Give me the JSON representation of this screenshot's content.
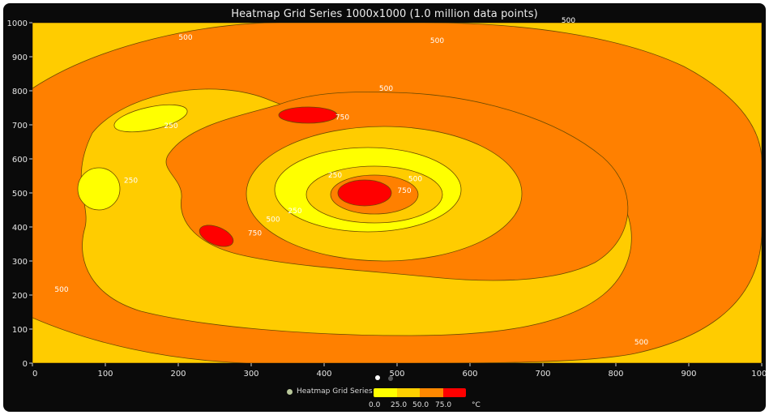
{
  "chart_data": {
    "type": "heatmap",
    "title": "Heatmap Grid Series 1000x1000 (1.0 million data points)",
    "xlim": [
      0,
      1000
    ],
    "ylim": [
      0,
      1000
    ],
    "x_ticks": [
      "0",
      "100",
      "200",
      "300",
      "400",
      "500",
      "600",
      "700",
      "800",
      "900",
      "1000"
    ],
    "y_ticks": [
      "0",
      "100",
      "200",
      "300",
      "400",
      "500",
      "600",
      "700",
      "800",
      "900",
      "1000"
    ],
    "contour_levels": [
      250,
      500,
      750
    ],
    "contour_labels": [
      {
        "text": "500",
        "x": 210,
        "y": 950
      },
      {
        "text": "500",
        "x": 555,
        "y": 940
      },
      {
        "text": "500",
        "x": 735,
        "y": 1000
      },
      {
        "text": "500",
        "x": 485,
        "y": 800
      },
      {
        "text": "750",
        "x": 425,
        "y": 715
      },
      {
        "text": "250",
        "x": 190,
        "y": 690
      },
      {
        "text": "250",
        "x": 135,
        "y": 530
      },
      {
        "text": "250",
        "x": 415,
        "y": 545
      },
      {
        "text": "500",
        "x": 525,
        "y": 535
      },
      {
        "text": "750",
        "x": 510,
        "y": 500
      },
      {
        "text": "250",
        "x": 360,
        "y": 440
      },
      {
        "text": "500",
        "x": 330,
        "y": 415
      },
      {
        "text": "750",
        "x": 305,
        "y": 375
      },
      {
        "text": "500",
        "x": 40,
        "y": 210
      },
      {
        "text": "500",
        "x": 835,
        "y": 55
      }
    ],
    "legend": {
      "series_name": "Heatmap Grid Series",
      "unit": "°C",
      "ticks": [
        "0.0",
        "25.0",
        "50.0",
        "75.0"
      ],
      "colors": [
        "#ffff00",
        "#ffd000",
        "#ff8800",
        "#ff0000"
      ]
    },
    "colors": {
      "low": "#ffff00",
      "mid_low": "#ffcc00",
      "mid_high": "#ff8000",
      "high": "#ff0000",
      "contour_line": "#6b4a00"
    }
  }
}
